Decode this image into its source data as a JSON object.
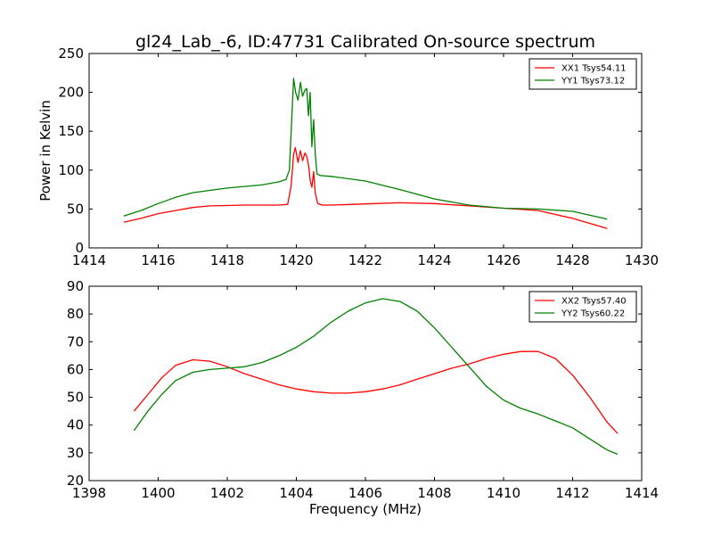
{
  "title": "gl24_Lab_-6, ID:47731 Calibrated On-source spectrum",
  "chart_data": [
    {
      "type": "line",
      "ylabel": "Power in Kelvin",
      "xlabel": "",
      "xlim": [
        1414,
        1430
      ],
      "ylim": [
        0,
        250
      ],
      "xticks": [
        1414,
        1416,
        1418,
        1420,
        1422,
        1424,
        1426,
        1428,
        1430
      ],
      "yticks": [
        0,
        50,
        100,
        150,
        200,
        250
      ],
      "grid": false,
      "legend_position": "top-right",
      "series": [
        {
          "name": "XX1 Tsys54.11",
          "color": "#ff0000",
          "points": [
            [
              1415.0,
              33
            ],
            [
              1415.5,
              38
            ],
            [
              1416.0,
              44
            ],
            [
              1416.5,
              48
            ],
            [
              1417.0,
              52
            ],
            [
              1417.5,
              54
            ],
            [
              1418.0,
              54.5
            ],
            [
              1418.5,
              55
            ],
            [
              1419.0,
              55
            ],
            [
              1419.5,
              55
            ],
            [
              1419.75,
              56
            ],
            [
              1419.85,
              80
            ],
            [
              1419.92,
              120
            ],
            [
              1419.97,
              129
            ],
            [
              1420.05,
              110
            ],
            [
              1420.12,
              125
            ],
            [
              1420.18,
              112
            ],
            [
              1420.25,
              122
            ],
            [
              1420.3,
              118
            ],
            [
              1420.36,
              105
            ],
            [
              1420.4,
              87
            ],
            [
              1420.45,
              78
            ],
            [
              1420.5,
              98
            ],
            [
              1420.55,
              70
            ],
            [
              1420.62,
              57
            ],
            [
              1420.75,
              55
            ],
            [
              1421.0,
              55
            ],
            [
              1422.0,
              56.5
            ],
            [
              1423.0,
              58
            ],
            [
              1424.0,
              57
            ],
            [
              1425.0,
              54
            ],
            [
              1426.0,
              51
            ],
            [
              1427.0,
              48
            ],
            [
              1428.0,
              38
            ],
            [
              1429.0,
              25
            ]
          ]
        },
        {
          "name": "YY1 Tsys73.12",
          "color": "#008000",
          "points": [
            [
              1415.0,
              41
            ],
            [
              1415.5,
              48
            ],
            [
              1416.0,
              57
            ],
            [
              1416.5,
              65
            ],
            [
              1417.0,
              71
            ],
            [
              1417.5,
              74
            ],
            [
              1418.0,
              77
            ],
            [
              1418.5,
              79
            ],
            [
              1419.0,
              81
            ],
            [
              1419.5,
              85
            ],
            [
              1419.7,
              88
            ],
            [
              1419.8,
              100
            ],
            [
              1419.85,
              150
            ],
            [
              1419.92,
              218
            ],
            [
              1419.98,
              200
            ],
            [
              1420.05,
              190
            ],
            [
              1420.12,
              213
            ],
            [
              1420.18,
              195
            ],
            [
              1420.25,
              203
            ],
            [
              1420.3,
              205
            ],
            [
              1420.35,
              170
            ],
            [
              1420.4,
              200
            ],
            [
              1420.45,
              130
            ],
            [
              1420.5,
              165
            ],
            [
              1420.55,
              120
            ],
            [
              1420.6,
              95
            ],
            [
              1420.7,
              93
            ],
            [
              1421.0,
              92
            ],
            [
              1422.0,
              86
            ],
            [
              1423.0,
              75
            ],
            [
              1424.0,
              63
            ],
            [
              1425.0,
              55
            ],
            [
              1426.0,
              51
            ],
            [
              1427.0,
              50
            ],
            [
              1428.0,
              47
            ],
            [
              1429.0,
              37
            ]
          ]
        }
      ]
    },
    {
      "type": "line",
      "xlabel": "Frequency (MHz)",
      "ylabel": "",
      "xlim": [
        1398,
        1414
      ],
      "ylim": [
        20,
        90
      ],
      "xticks": [
        1398,
        1400,
        1402,
        1404,
        1406,
        1408,
        1410,
        1412,
        1414
      ],
      "yticks": [
        20,
        30,
        40,
        50,
        60,
        70,
        80,
        90
      ],
      "grid": false,
      "legend_position": "top-right",
      "series": [
        {
          "name": "XX2 Tsys57.40",
          "color": "#ff0000",
          "points": [
            [
              1399.3,
              45
            ],
            [
              1399.7,
              51
            ],
            [
              1400.1,
              57
            ],
            [
              1400.5,
              61.5
            ],
            [
              1401.0,
              63.5
            ],
            [
              1401.5,
              63
            ],
            [
              1402.0,
              61
            ],
            [
              1402.5,
              58.5
            ],
            [
              1403.0,
              56.5
            ],
            [
              1403.5,
              54.5
            ],
            [
              1404.0,
              53
            ],
            [
              1404.5,
              52
            ],
            [
              1405.0,
              51.5
            ],
            [
              1405.5,
              51.5
            ],
            [
              1406.0,
              52
            ],
            [
              1406.5,
              53
            ],
            [
              1407.0,
              54.5
            ],
            [
              1407.5,
              56.5
            ],
            [
              1408.0,
              58.5
            ],
            [
              1408.5,
              60.5
            ],
            [
              1409.0,
              62
            ],
            [
              1409.5,
              64
            ],
            [
              1410.0,
              65.5
            ],
            [
              1410.5,
              66.5
            ],
            [
              1411.0,
              66.5
            ],
            [
              1411.5,
              64
            ],
            [
              1412.0,
              58
            ],
            [
              1412.5,
              50
            ],
            [
              1413.0,
              41
            ],
            [
              1413.3,
              37
            ]
          ]
        },
        {
          "name": "YY2 Tsys60.22",
          "color": "#008000",
          "points": [
            [
              1399.3,
              38
            ],
            [
              1399.7,
              45
            ],
            [
              1400.1,
              51
            ],
            [
              1400.5,
              56
            ],
            [
              1401.0,
              59
            ],
            [
              1401.5,
              60
            ],
            [
              1402.0,
              60.5
            ],
            [
              1402.5,
              61
            ],
            [
              1403.0,
              62.5
            ],
            [
              1403.5,
              65
            ],
            [
              1404.0,
              68
            ],
            [
              1404.5,
              72
            ],
            [
              1405.0,
              77
            ],
            [
              1405.5,
              81
            ],
            [
              1406.0,
              84
            ],
            [
              1406.5,
              85.5
            ],
            [
              1407.0,
              84.5
            ],
            [
              1407.5,
              81
            ],
            [
              1408.0,
              75
            ],
            [
              1408.5,
              68
            ],
            [
              1409.0,
              61
            ],
            [
              1409.5,
              54
            ],
            [
              1410.0,
              49
            ],
            [
              1410.5,
              46
            ],
            [
              1411.0,
              44
            ],
            [
              1411.5,
              41.5
            ],
            [
              1412.0,
              39
            ],
            [
              1412.5,
              35
            ],
            [
              1413.0,
              31
            ],
            [
              1413.3,
              29.5
            ]
          ]
        }
      ]
    }
  ]
}
